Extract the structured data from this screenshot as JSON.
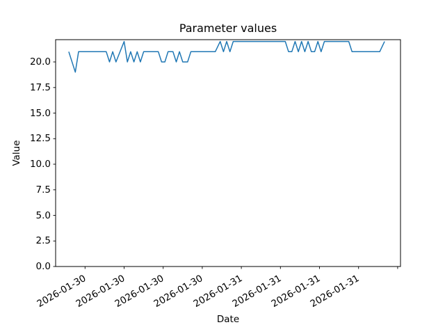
{
  "figure": {
    "title": "Parameter values",
    "xlabel": "Date",
    "ylabel": "Value"
  },
  "chart_data": {
    "type": "line",
    "title": "Parameter values",
    "xlabel": "Date",
    "ylabel": "Value",
    "series_name": "Parameter values",
    "series_color": "#1f77b4",
    "background_color": "#ffffff",
    "grid": false,
    "legend": false,
    "x_unit": "hours since 2026-01-30 00:00",
    "xlim": [
      -4.52,
      48.44
    ],
    "ylim": [
      0,
      22.18
    ],
    "ytick_values": [
      0,
      2.5,
      5,
      7.5,
      10,
      12.5,
      15,
      17.5,
      20
    ],
    "ytick_labels": [
      "0.0",
      "2.5",
      "5.0",
      "7.5",
      "10.0",
      "12.5",
      "15.0",
      "17.5",
      "20.0"
    ],
    "xticks": [
      {
        "hour": 0,
        "label": "2026-01-30"
      },
      {
        "hour": 6,
        "label": "2026-01-30"
      },
      {
        "hour": 12,
        "label": "2026-01-30"
      },
      {
        "hour": 18,
        "label": "2026-01-30"
      },
      {
        "hour": 24,
        "label": "2026-01-31"
      },
      {
        "hour": 30,
        "label": "2026-01-31"
      },
      {
        "hour": 36,
        "label": "2026-01-31"
      },
      {
        "hour": 42,
        "label": "2026-01-31"
      },
      {
        "hour": 48,
        "label": ""
      }
    ],
    "points": [
      [
        -2.5,
        21
      ],
      [
        -1.5,
        19
      ],
      [
        -1,
        21
      ],
      [
        3.25,
        21
      ],
      [
        3.75,
        20
      ],
      [
        4.25,
        21
      ],
      [
        4.75,
        20
      ],
      [
        6,
        22
      ],
      [
        6.5,
        20
      ],
      [
        7,
        21
      ],
      [
        7.5,
        20
      ],
      [
        8,
        21
      ],
      [
        8.5,
        20
      ],
      [
        9,
        21
      ],
      [
        11.25,
        21
      ],
      [
        11.75,
        20
      ],
      [
        12.25,
        20
      ],
      [
        12.75,
        21
      ],
      [
        13.5,
        21
      ],
      [
        14,
        20
      ],
      [
        14.5,
        21
      ],
      [
        15,
        20
      ],
      [
        15.75,
        20
      ],
      [
        16.25,
        21
      ],
      [
        20,
        21
      ],
      [
        20.75,
        22
      ],
      [
        21.25,
        21
      ],
      [
        21.75,
        22
      ],
      [
        22.25,
        21
      ],
      [
        22.75,
        22
      ],
      [
        30.75,
        22
      ],
      [
        31.25,
        21
      ],
      [
        31.75,
        21
      ],
      [
        32.25,
        22
      ],
      [
        32.75,
        21
      ],
      [
        33.25,
        22
      ],
      [
        33.75,
        21
      ],
      [
        34.25,
        22
      ],
      [
        34.75,
        21
      ],
      [
        35.25,
        21
      ],
      [
        35.75,
        22
      ],
      [
        36.25,
        21
      ],
      [
        36.75,
        22
      ],
      [
        40.5,
        22
      ],
      [
        41,
        21
      ],
      [
        45.25,
        21
      ],
      [
        46,
        22
      ]
    ]
  }
}
